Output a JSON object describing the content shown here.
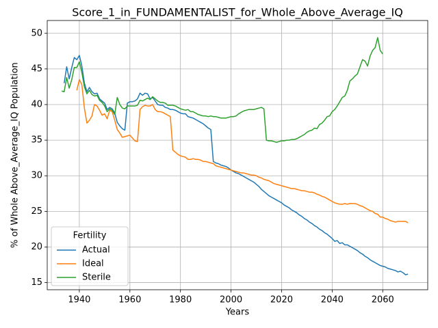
{
  "chart_data": {
    "type": "line",
    "title": "Score_1_in_FUNDAMENTALIST_for_Whole_Above_Average_IQ",
    "x_label": "Years",
    "y_label": "% of Whole Above_Average_IQ Population",
    "legend_title": "Fertility",
    "legend": "lower left",
    "grid": true,
    "xlim": [
      1927.3,
      2077.8
    ],
    "ylim": [
      14.0,
      51.8
    ],
    "xticks": [
      1940,
      1960,
      1980,
      2000,
      2020,
      2040,
      2060
    ],
    "yticks": [
      15,
      20,
      25,
      30,
      35,
      40,
      45,
      50
    ],
    "x": [
      1933,
      1934,
      1935,
      1936,
      1937,
      1938,
      1939,
      1940,
      1941,
      1942,
      1943,
      1944,
      1945,
      1946,
      1947,
      1948,
      1949,
      1950,
      1951,
      1952,
      1953,
      1954,
      1955,
      1956,
      1957,
      1958,
      1959,
      1960,
      1961,
      1962,
      1963,
      1964,
      1965,
      1966,
      1967,
      1968,
      1969,
      1970,
      1971,
      1972,
      1973,
      1974,
      1975,
      1976,
      1977,
      1978,
      1979,
      1980,
      1981,
      1982,
      1983,
      1984,
      1985,
      1986,
      1987,
      1988,
      1989,
      1990,
      1991,
      1992,
      1993,
      1994,
      1995,
      1996,
      1997,
      1998,
      1999,
      2000,
      2001,
      2002,
      2003,
      2004,
      2005,
      2006,
      2007,
      2008,
      2009,
      2010,
      2011,
      2012,
      2013,
      2014,
      2015,
      2016,
      2017,
      2018,
      2019,
      2020,
      2021,
      2022,
      2023,
      2024,
      2025,
      2026,
      2027,
      2028,
      2029,
      2030,
      2031,
      2032,
      2033,
      2034,
      2035,
      2036,
      2037,
      2038,
      2039,
      2040,
      2041,
      2042,
      2043,
      2044,
      2045,
      2046,
      2047,
      2048,
      2049,
      2050,
      2051,
      2052,
      2053,
      2054,
      2055,
      2056,
      2057,
      2058,
      2059,
      2060,
      2061,
      2062,
      2063,
      2064,
      2065,
      2066,
      2067,
      2068,
      2069,
      2070
    ],
    "series": [
      {
        "name": "Actual",
        "color": "#1f77b4",
        "values": [
          null,
          43.0,
          45.3,
          43.6,
          45.2,
          46.6,
          46.3,
          46.9,
          45.4,
          43.0,
          41.8,
          42.4,
          41.8,
          41.5,
          41.6,
          40.8,
          40.5,
          40.2,
          39.3,
          39.6,
          39.4,
          38.8,
          37.5,
          37.0,
          36.6,
          36.4,
          40.2,
          40.4,
          40.4,
          40.5,
          40.8,
          41.6,
          41.3,
          41.6,
          41.5,
          40.8,
          41.0,
          40.5,
          40.0,
          39.9,
          39.9,
          39.6,
          39.5,
          39.3,
          39.3,
          39.2,
          39.0,
          38.8,
          38.7,
          38.7,
          38.3,
          38.2,
          38.1,
          37.9,
          37.7,
          37.5,
          37.3,
          37.0,
          36.7,
          36.5,
          32.0,
          31.8,
          31.7,
          31.5,
          31.4,
          31.3,
          31.1,
          30.8,
          30.6,
          30.4,
          30.3,
          30.1,
          29.9,
          29.7,
          29.5,
          29.3,
          29.1,
          28.8,
          28.5,
          28.1,
          27.8,
          27.5,
          27.2,
          27.0,
          26.8,
          26.6,
          26.4,
          26.2,
          25.9,
          25.7,
          25.5,
          25.2,
          25.0,
          24.8,
          24.5,
          24.3,
          24.0,
          23.8,
          23.5,
          23.3,
          23.0,
          22.8,
          22.5,
          22.3,
          22.0,
          21.8,
          21.5,
          21.2,
          20.8,
          20.9,
          20.5,
          20.6,
          20.3,
          20.3,
          20.1,
          19.9,
          19.7,
          19.5,
          19.2,
          19.0,
          18.7,
          18.5,
          18.2,
          18.0,
          17.8,
          17.6,
          17.4,
          17.3,
          17.2,
          17.0,
          16.9,
          16.8,
          16.7,
          16.5,
          16.6,
          16.4,
          16.1,
          16.2
        ]
      },
      {
        "name": "Ideal",
        "color": "#ff7f0e",
        "values": [
          null,
          null,
          null,
          null,
          null,
          null,
          42.0,
          43.5,
          42.8,
          39.5,
          37.4,
          37.8,
          38.4,
          40.0,
          39.8,
          39.2,
          38.5,
          38.7,
          38.0,
          39.2,
          39.0,
          37.8,
          36.5,
          36.0,
          35.4,
          35.5,
          35.6,
          35.7,
          35.3,
          34.9,
          34.8,
          39.3,
          39.7,
          39.9,
          39.8,
          39.8,
          40.0,
          39.3,
          39.0,
          39.0,
          38.9,
          38.7,
          38.5,
          38.3,
          33.6,
          33.3,
          33.0,
          32.8,
          32.7,
          32.6,
          32.3,
          32.3,
          32.4,
          32.3,
          32.3,
          32.2,
          32.0,
          32.0,
          31.9,
          31.8,
          31.7,
          31.4,
          31.3,
          31.2,
          31.1,
          31.0,
          30.9,
          30.8,
          30.7,
          30.6,
          30.5,
          30.4,
          30.4,
          30.3,
          30.2,
          30.1,
          30.1,
          30.0,
          29.8,
          29.7,
          29.5,
          29.4,
          29.3,
          29.1,
          28.9,
          28.8,
          28.7,
          28.6,
          28.5,
          28.4,
          28.3,
          28.2,
          28.2,
          28.1,
          28.0,
          27.9,
          27.9,
          27.8,
          27.7,
          27.7,
          27.6,
          27.4,
          27.3,
          27.1,
          27.0,
          26.8,
          26.6,
          26.4,
          26.2,
          26.1,
          26.0,
          26.0,
          26.1,
          26.0,
          26.1,
          26.1,
          26.1,
          26.0,
          25.8,
          25.7,
          25.5,
          25.3,
          25.1,
          25.0,
          24.7,
          24.6,
          24.2,
          24.2,
          24.0,
          23.9,
          23.7,
          23.6,
          23.5,
          23.6,
          23.6,
          23.6,
          23.6,
          23.4
        ]
      },
      {
        "name": "Sterile",
        "color": "#2ca02c",
        "values": [
          41.9,
          41.8,
          43.8,
          42.3,
          43.5,
          45.2,
          45.2,
          46.0,
          44.5,
          42.5,
          41.5,
          42.0,
          41.4,
          41.2,
          41.3,
          40.6,
          40.3,
          39.8,
          39.0,
          39.4,
          39.2,
          38.6,
          41.0,
          40.0,
          39.5,
          39.4,
          39.8,
          39.8,
          39.8,
          39.8,
          39.9,
          40.6,
          40.5,
          40.7,
          40.9,
          40.7,
          41.1,
          40.8,
          40.5,
          40.3,
          40.3,
          40.2,
          39.9,
          39.9,
          39.9,
          39.8,
          39.6,
          39.4,
          39.3,
          39.2,
          39.3,
          39.0,
          39.0,
          38.8,
          38.6,
          38.5,
          38.4,
          38.4,
          38.3,
          38.4,
          38.3,
          38.3,
          38.2,
          38.1,
          38.1,
          38.1,
          38.2,
          38.3,
          38.3,
          38.4,
          38.7,
          38.9,
          39.1,
          39.2,
          39.3,
          39.3,
          39.3,
          39.4,
          39.5,
          39.6,
          39.4,
          35.0,
          34.9,
          34.9,
          34.8,
          34.7,
          34.8,
          34.9,
          34.9,
          35.0,
          35.0,
          35.1,
          35.1,
          35.2,
          35.4,
          35.6,
          35.8,
          36.1,
          36.3,
          36.4,
          36.7,
          36.6,
          37.2,
          37.4,
          37.8,
          38.3,
          38.4,
          39.0,
          39.3,
          39.8,
          40.4,
          41.0,
          41.2,
          42.0,
          43.3,
          43.6,
          44.0,
          44.3,
          45.3,
          46.3,
          46.1,
          45.4,
          46.8,
          47.6,
          48.0,
          49.4,
          47.6,
          47.1,
          null,
          null,
          null,
          null,
          null,
          null,
          null,
          null,
          null,
          null
        ]
      }
    ]
  }
}
